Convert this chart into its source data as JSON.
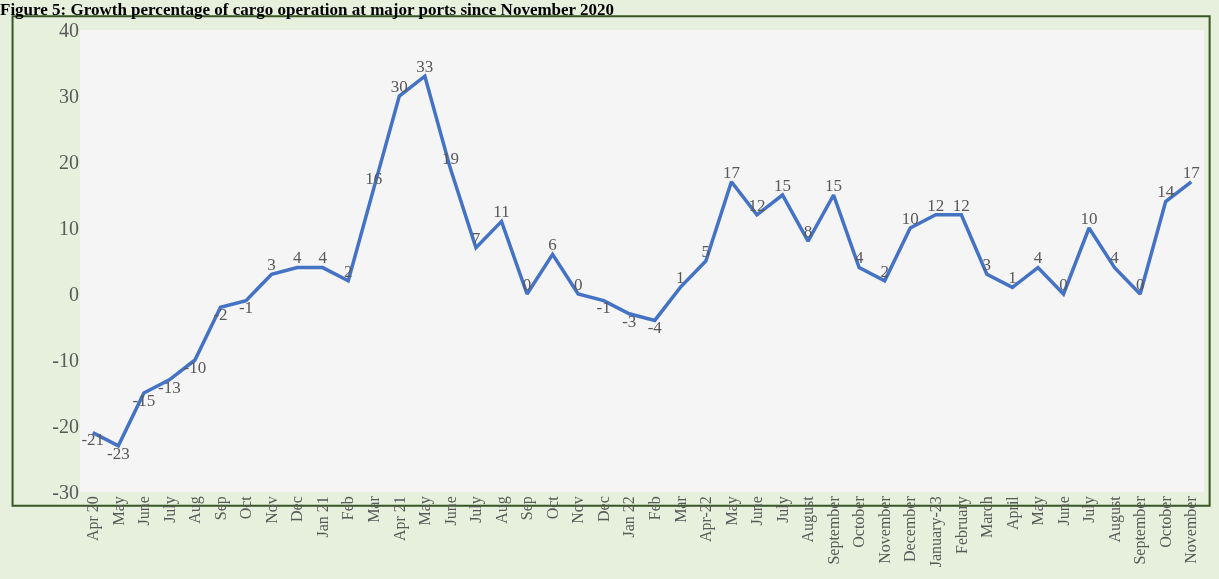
{
  "chart_data": {
    "type": "line",
    "title": "Figure 5: Growth percentage of cargo operation at major ports since November 2020",
    "categories": [
      "Apr 20",
      "May",
      "June",
      "July",
      "Aug",
      "Sep",
      "Oct",
      "Nov",
      "Dec",
      "Jan 21",
      "Feb",
      "Mar",
      "Apr 21",
      "May",
      "June",
      "July",
      "Aug",
      "Sep",
      "Oct",
      "Nov",
      "Dec",
      "Jan 22",
      "Feb",
      "Mar",
      "Apr-22",
      "May",
      "June",
      "July",
      "August",
      "September",
      "October",
      "November",
      "December",
      "January-23",
      "February",
      "March",
      "April",
      "May",
      "June",
      "July",
      "August",
      "September",
      "October",
      "November"
    ],
    "series": [
      {
        "color": "#4472c4",
        "values": [
          -21,
          -23,
          -15,
          -13,
          -10,
          -2,
          -1,
          3,
          4,
          4,
          2,
          16,
          30,
          33,
          19,
          7,
          11,
          0,
          6,
          0,
          -1,
          -3,
          -4,
          1,
          5,
          17,
          12,
          15,
          8,
          15,
          4,
          2,
          10,
          12,
          12,
          3,
          1,
          4,
          0,
          10,
          4,
          0,
          14,
          17
        ]
      }
    ],
    "ylim": [
      -30,
      40
    ],
    "yticks": [
      -30,
      -20,
      -10,
      0,
      10,
      20,
      30,
      40
    ],
    "data_labels": true,
    "grid": false,
    "legend": false,
    "marker": "none",
    "line_style": "solid"
  }
}
